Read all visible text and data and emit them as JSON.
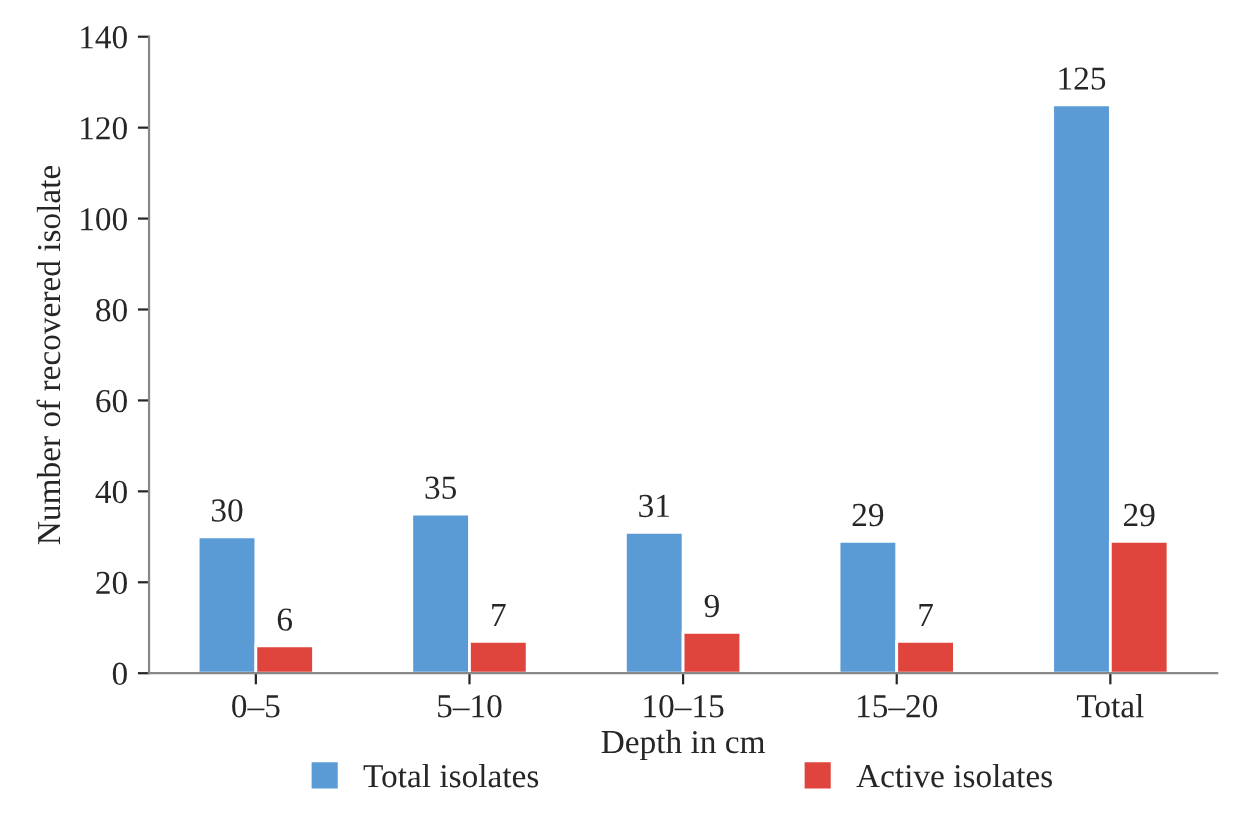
{
  "chart_data": {
    "type": "bar",
    "xlabel": "Depth in cm",
    "ylabel": "Number of recovered isolate",
    "categories": [
      "0–5",
      "5–10",
      "10–15",
      "15–20",
      "Total"
    ],
    "series": [
      {
        "name": "Total isolates",
        "color": "#5b9bd5",
        "values": [
          30,
          35,
          31,
          29,
          125
        ]
      },
      {
        "name": "Active isolates",
        "color": "#e0453d",
        "values": [
          6,
          7,
          9,
          7,
          29
        ]
      }
    ],
    "ylim": [
      0,
      140
    ],
    "yticks": [
      0,
      20,
      40,
      60,
      80,
      100,
      120,
      140
    ],
    "data_labels": true,
    "legend": "bottom",
    "grid": false
  }
}
